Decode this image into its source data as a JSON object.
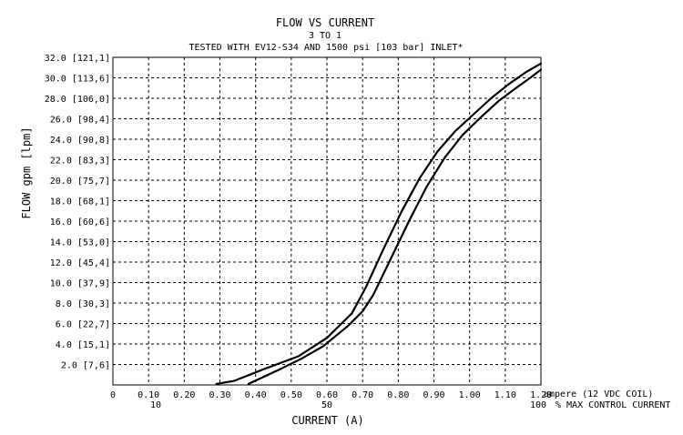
{
  "chart_data": {
    "type": "line",
    "title": "FLOW VS CURRENT",
    "subtitle": "3 TO 1",
    "subtitle2": "TESTED WITH EV12-S34 AND 1500 psi [103 bar] INLET*",
    "ylabel": "FLOW gpm [lpm]",
    "xlabel": "CURRENT (A)",
    "x_unit_note": "ampere (12 VDC COIL)",
    "x_percent_note": "% MAX CONTROL CURRENT",
    "xlim": [
      0,
      1.2
    ],
    "ylim": [
      0,
      32
    ],
    "grid": true,
    "x_ticks": [
      {
        "value": 0,
        "label": "0"
      },
      {
        "value": 0.1,
        "label": "0.10"
      },
      {
        "value": 0.2,
        "label": "0.20"
      },
      {
        "value": 0.3,
        "label": "0.30"
      },
      {
        "value": 0.4,
        "label": "0.40"
      },
      {
        "value": 0.5,
        "label": "0.50"
      },
      {
        "value": 0.6,
        "label": "0.60"
      },
      {
        "value": 0.7,
        "label": "0.70"
      },
      {
        "value": 0.8,
        "label": "0.80"
      },
      {
        "value": 0.9,
        "label": "0.90"
      },
      {
        "value": 1.0,
        "label": "1.00"
      },
      {
        "value": 1.1,
        "label": "1.10"
      },
      {
        "value": 1.2,
        "label": "1.20"
      }
    ],
    "x_percent_ticks": [
      {
        "value": 0.12,
        "label": "10"
      },
      {
        "value": 0.6,
        "label": "50"
      },
      {
        "value": 1.2,
        "label": "100"
      }
    ],
    "y_ticks": [
      {
        "value": 2,
        "label": "2.0 [7,6]"
      },
      {
        "value": 4,
        "label": "4.0 [15,1]"
      },
      {
        "value": 6,
        "label": "6.0 [22,7]"
      },
      {
        "value": 8,
        "label": "8.0 [30,3]"
      },
      {
        "value": 10,
        "label": "10.0 [37,9]"
      },
      {
        "value": 12,
        "label": "12.0 [45,4]"
      },
      {
        "value": 14,
        "label": "14.0 [53,0]"
      },
      {
        "value": 16,
        "label": "16.0 [60,6]"
      },
      {
        "value": 18,
        "label": "18.0 [68,1]"
      },
      {
        "value": 20,
        "label": "20.0 [75,7]"
      },
      {
        "value": 22,
        "label": "22.0 [83,3]"
      },
      {
        "value": 24,
        "label": "24.0 [90,8]"
      },
      {
        "value": 26,
        "label": "26.0 [98,4]"
      },
      {
        "value": 28,
        "label": "28.0 [106,0]"
      },
      {
        "value": 30,
        "label": "30.0 [113,6]"
      },
      {
        "value": 32,
        "label": "32.0 [121,1]"
      }
    ],
    "series": [
      {
        "x": [
          0.29,
          0.34,
          0.42,
          0.52,
          0.6,
          0.67,
          0.71,
          0.76,
          0.81,
          0.86,
          0.91,
          0.96,
          1.01,
          1.06,
          1.11,
          1.16,
          1.2
        ],
        "y": [
          0.1,
          0.4,
          1.5,
          2.8,
          4.6,
          7.0,
          9.6,
          13.4,
          17.0,
          20.2,
          22.8,
          24.8,
          26.4,
          28.0,
          29.4,
          30.6,
          31.4
        ]
      },
      {
        "x": [
          0.38,
          0.46,
          0.53,
          0.59,
          0.66,
          0.7,
          0.73,
          0.78,
          0.83,
          0.88,
          0.93,
          0.98,
          1.03,
          1.08,
          1.13,
          1.17,
          1.2
        ],
        "y": [
          0.1,
          1.4,
          2.6,
          3.8,
          5.8,
          7.2,
          8.8,
          12.4,
          16.0,
          19.4,
          22.2,
          24.4,
          26.1,
          27.7,
          29.0,
          30.0,
          30.8
        ]
      }
    ],
    "line_color": "#000000",
    "grid_color": "#000000",
    "background_color": "#ffffff"
  }
}
